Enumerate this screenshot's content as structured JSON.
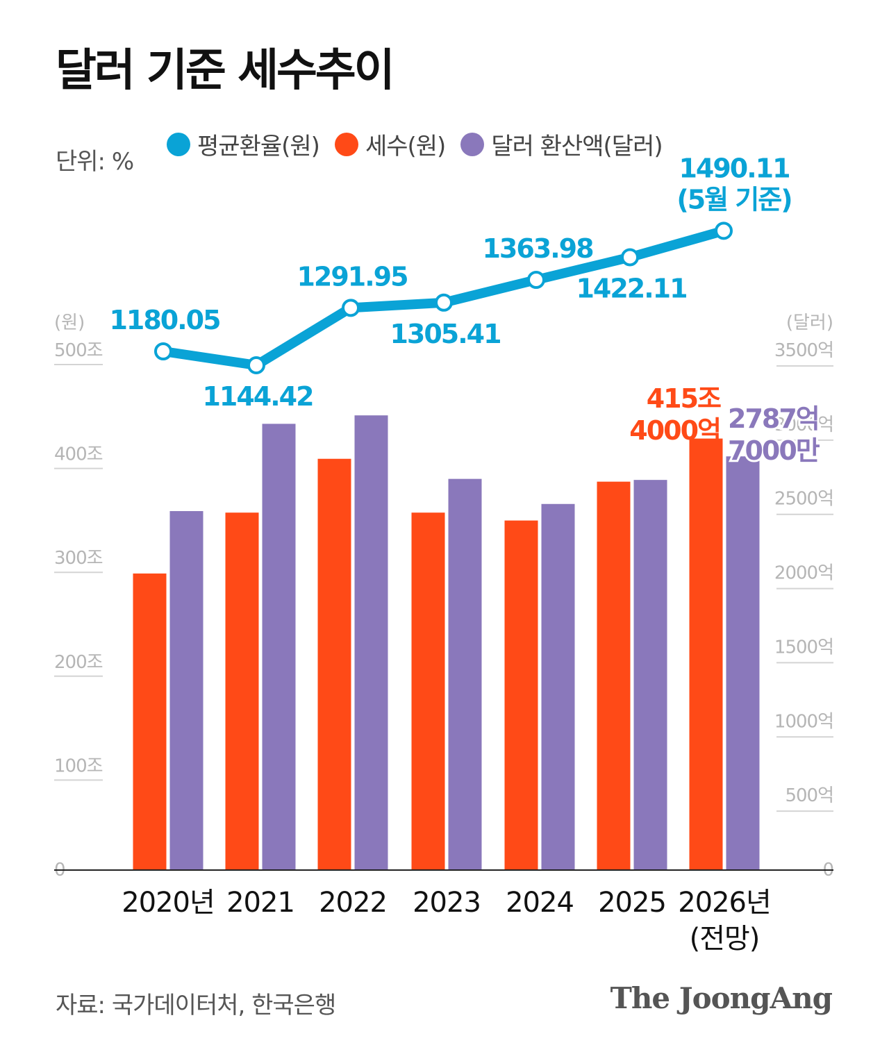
{
  "title": "달러 기준 세수추이",
  "unit_label": "단위: %",
  "legend": [
    {
      "label": "평균환율(원)",
      "color": "#0aa3d6",
      "icon": "legend-dot-icon"
    },
    {
      "label": "세수(원)",
      "color": "#ff4a17",
      "icon": "legend-dot-icon"
    },
    {
      "label": "달러 환산액(달러)",
      "color": "#8a78bb",
      "icon": "legend-dot-icon"
    }
  ],
  "source": "자료: 국가데이터처, 한국은행",
  "brand": "The JoongAng",
  "chart_data": {
    "type": "bar",
    "categories": [
      "2020년",
      "2021",
      "2022",
      "2023",
      "2024",
      "2025",
      "2026년\n(전망)"
    ],
    "left_axis": {
      "unit_label": "(원)",
      "ticks": [
        "0",
        "100조",
        "200조",
        "300조",
        "400조",
        "500조"
      ],
      "tick_values": [
        0,
        100,
        200,
        300,
        400,
        500
      ],
      "ylim": [
        0,
        500
      ]
    },
    "right_axis": {
      "unit_label": "(달러)",
      "ticks": [
        "0",
        "500억",
        "1000억",
        "1500억",
        "2000억",
        "2500억",
        "3000억",
        "3500억"
      ],
      "tick_values": [
        0,
        500,
        1000,
        1500,
        2000,
        2500,
        3000,
        3500
      ],
      "ylim": [
        0,
        3500
      ]
    },
    "series": [
      {
        "name": "세수(원)",
        "axis": "left",
        "color": "#ff4a17",
        "values": [
          285.5,
          344.1,
          395.9,
          344.1,
          336.5,
          373.9,
          415.4
        ]
      },
      {
        "name": "달러 환산액(달러)",
        "axis": "right",
        "color": "#8a78bb",
        "values": [
          2419,
          3007,
          3064,
          2636,
          2467,
          2629,
          2787.7
        ]
      },
      {
        "name": "평균환율(원)",
        "type": "line",
        "color": "#0aa3d6",
        "values": [
          1180.05,
          1144.42,
          1291.95,
          1305.41,
          1363.98,
          1422.11,
          1490.11
        ],
        "labels": [
          "1180.05",
          "1144.42",
          "1291.95",
          "1305.41",
          "1363.98",
          "1422.11",
          "1490.11\n(5월 기준)"
        ],
        "label_positions": [
          "above",
          "below",
          "above",
          "below",
          "above",
          "below",
          "above"
        ]
      }
    ],
    "annotations": [
      {
        "text": "415조\n4000억",
        "series": "세수(원)",
        "index": 6
      },
      {
        "text": "2787억\n7000만",
        "series": "달러 환산액(달러)",
        "index": 6
      }
    ],
    "grid": true
  }
}
